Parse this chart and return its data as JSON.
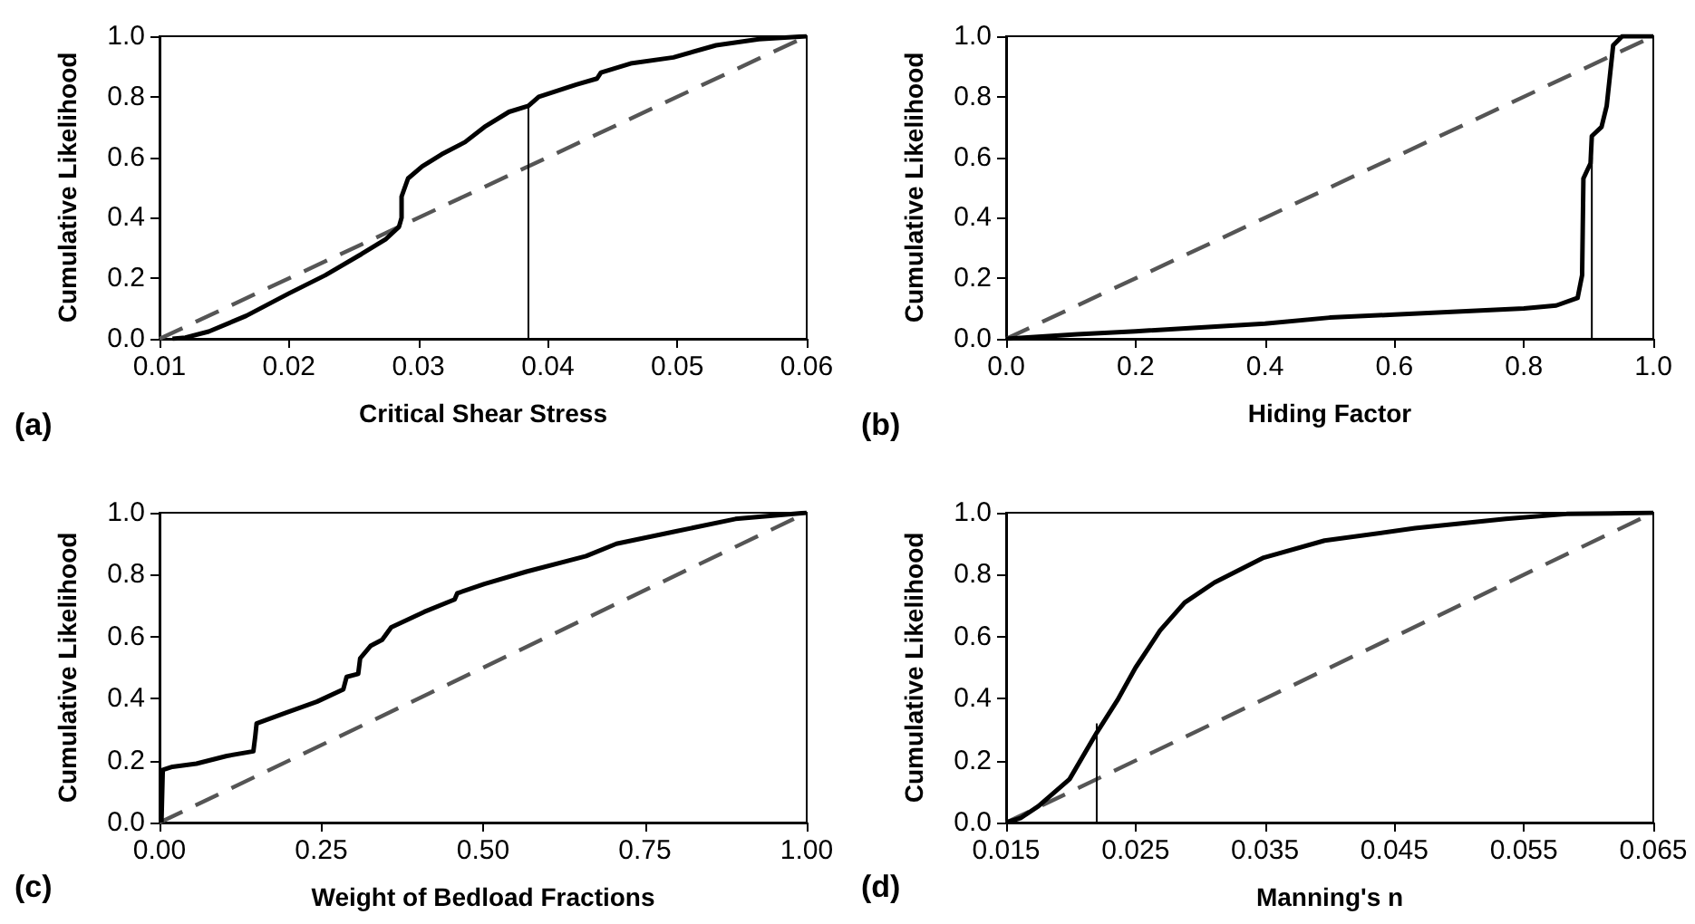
{
  "chart_data": [
    {
      "type": "line",
      "xlabel": "Critical Shear Stress",
      "ylabel": "Cumulative Likelihood",
      "annotations": [
        "(a)"
      ],
      "marker": "none",
      "xlim": [
        0.01,
        0.06
      ],
      "xticks": [
        {
          "value": 0.01,
          "label": "0.01"
        },
        {
          "value": 0.02,
          "label": "0.02"
        },
        {
          "value": 0.03,
          "label": "0.03"
        },
        {
          "value": 0.04,
          "label": "0.04"
        },
        {
          "value": 0.05,
          "label": "0.05"
        },
        {
          "value": 0.06,
          "label": "0.06"
        }
      ],
      "ylim": [
        0,
        1
      ],
      "yticks": [
        {
          "value": 0,
          "label": "0.0"
        },
        {
          "value": 0.2,
          "label": "0.2"
        },
        {
          "value": 0.4,
          "label": "0.4"
        },
        {
          "value": 0.6,
          "label": "0.6"
        },
        {
          "value": 0.8,
          "label": "0.8"
        },
        {
          "value": 1,
          "label": "1.0"
        }
      ],
      "series": [
        {
          "color": "#555555",
          "line_style": "dashed",
          "x": [
            0.01,
            0.06
          ],
          "values": [
            0,
            1
          ]
        },
        {
          "color": "#000000",
          "x": [
            0.011,
            0.012,
            0.0138,
            0.0167,
            0.02,
            0.0228,
            0.0256,
            0.0275,
            0.0285,
            0.0287,
            0.0287,
            0.0292,
            0.0303,
            0.0318,
            0.0336,
            0.0351,
            0.037,
            0.0385,
            0.0393,
            0.0422,
            0.0438,
            0.0441,
            0.0464,
            0.0497,
            0.053,
            0.0563,
            0.06
          ],
          "values": [
            0,
            0.004,
            0.024,
            0.076,
            0.15,
            0.21,
            0.28,
            0.33,
            0.37,
            0.4,
            0.47,
            0.53,
            0.57,
            0.61,
            0.65,
            0.7,
            0.75,
            0.77,
            0.8,
            0.84,
            0.86,
            0.88,
            0.91,
            0.93,
            0.97,
            0.99,
            1
          ]
        },
        {
          "color": "#000000",
          "x": [
            0.0385,
            0.0385
          ],
          "values": [
            0,
            0.77
          ]
        }
      ]
    },
    {
      "type": "line",
      "xlabel": "Hiding Factor",
      "ylabel": "Cumulative Likelihood",
      "annotations": [
        "(b)"
      ],
      "marker": "none",
      "xlim": [
        0,
        1
      ],
      "xticks": [
        {
          "value": 0,
          "label": "0.0"
        },
        {
          "value": 0.2,
          "label": "0.2"
        },
        {
          "value": 0.4,
          "label": "0.4"
        },
        {
          "value": 0.6,
          "label": "0.6"
        },
        {
          "value": 0.8,
          "label": "0.8"
        },
        {
          "value": 1,
          "label": "1.0"
        }
      ],
      "ylim": [
        0,
        1
      ],
      "yticks": [
        {
          "value": 0,
          "label": "0.0"
        },
        {
          "value": 0.2,
          "label": "0.2"
        },
        {
          "value": 0.4,
          "label": "0.4"
        },
        {
          "value": 0.6,
          "label": "0.6"
        },
        {
          "value": 0.8,
          "label": "0.8"
        },
        {
          "value": 1,
          "label": "1.0"
        }
      ],
      "series": [
        {
          "color": "#555555",
          "line_style": "dashed",
          "x": [
            0,
            1
          ],
          "values": [
            0,
            1
          ]
        },
        {
          "color": "#000000",
          "x": [
            0,
            0.11,
            0.2,
            0.4,
            0.5,
            0.6,
            0.8,
            0.85,
            0.883,
            0.89,
            0.892,
            0.903,
            0.905,
            0.92,
            0.928,
            0.933,
            0.938,
            0.952,
            1
          ],
          "values": [
            0,
            0.015,
            0.025,
            0.05,
            0.07,
            0.08,
            0.1,
            0.11,
            0.135,
            0.21,
            0.53,
            0.58,
            0.67,
            0.7,
            0.77,
            0.87,
            0.97,
            1,
            1
          ]
        },
        {
          "color": "#000000",
          "x": [
            0.905,
            0.905
          ],
          "values": [
            0,
            0.6
          ]
        }
      ]
    },
    {
      "type": "line",
      "xlabel": "Weight of Bedload Fractions",
      "ylabel": "Cumulative Likelihood",
      "annotations": [
        "(c)"
      ],
      "marker": "none",
      "xlim": [
        0,
        1
      ],
      "xticks": [
        {
          "value": 0,
          "label": "0.00"
        },
        {
          "value": 0.25,
          "label": "0.25"
        },
        {
          "value": 0.5,
          "label": "0.50"
        },
        {
          "value": 0.75,
          "label": "0.75"
        },
        {
          "value": 1,
          "label": "1.00"
        }
      ],
      "ylim": [
        0,
        1
      ],
      "yticks": [
        {
          "value": 0,
          "label": "0.0"
        },
        {
          "value": 0.2,
          "label": "0.2"
        },
        {
          "value": 0.4,
          "label": "0.4"
        },
        {
          "value": 0.6,
          "label": "0.6"
        },
        {
          "value": 0.8,
          "label": "0.8"
        },
        {
          "value": 1,
          "label": "1.0"
        }
      ],
      "series": [
        {
          "color": "#555555",
          "line_style": "dashed",
          "x": [
            0,
            1
          ],
          "values": [
            0,
            1
          ]
        },
        {
          "color": "#000000",
          "x": [
            0.003,
            0.005,
            0.02,
            0.057,
            0.104,
            0.145,
            0.148,
            0.15,
            0.196,
            0.243,
            0.284,
            0.289,
            0.307,
            0.31,
            0.326,
            0.344,
            0.358,
            0.409,
            0.456,
            0.46,
            0.502,
            0.567,
            0.659,
            0.706,
            0.798,
            0.89,
            1
          ],
          "values": [
            0,
            0.17,
            0.18,
            0.19,
            0.215,
            0.23,
            0.28,
            0.32,
            0.355,
            0.39,
            0.43,
            0.47,
            0.48,
            0.53,
            0.57,
            0.59,
            0.63,
            0.68,
            0.72,
            0.74,
            0.77,
            0.81,
            0.86,
            0.9,
            0.94,
            0.98,
            1
          ]
        }
      ]
    },
    {
      "type": "line",
      "xlabel": "Manning's n",
      "ylabel": "Cumulative Likelihood",
      "annotations": [
        "(d)"
      ],
      "marker": "none",
      "xlim": [
        0.015,
        0.065
      ],
      "xticks": [
        0.015,
        0.025,
        0.035,
        0.045,
        0.055,
        0.065
      ],
      "ylim": [
        0,
        1
      ],
      "yticks": [
        {
          "value": 0,
          "label": "0.0"
        },
        {
          "value": 0.2,
          "label": "0.2"
        },
        {
          "value": 0.4,
          "label": "0.4"
        },
        {
          "value": 0.6,
          "label": "0.6"
        },
        {
          "value": 0.8,
          "label": "0.8"
        },
        {
          "value": 1,
          "label": "1.0"
        }
      ],
      "series": [
        {
          "color": "#555555",
          "line_style": "dashed",
          "x": [
            0.015,
            0.065
          ],
          "values": [
            0,
            1
          ]
        },
        {
          "color": "#000000",
          "x": [
            0.015,
            0.0161,
            0.0175,
            0.0199,
            0.022,
            0.0236,
            0.025,
            0.0269,
            0.0288,
            0.0311,
            0.0349,
            0.0396,
            0.0466,
            0.0536,
            0.0583,
            0.065
          ],
          "values": [
            0,
            0.014,
            0.053,
            0.14,
            0.29,
            0.395,
            0.5,
            0.62,
            0.71,
            0.775,
            0.855,
            0.91,
            0.95,
            0.98,
            0.996,
            1
          ]
        },
        {
          "color": "#000000",
          "x": [
            0.022,
            0.022
          ],
          "values": [
            0,
            0.32
          ]
        }
      ]
    }
  ]
}
